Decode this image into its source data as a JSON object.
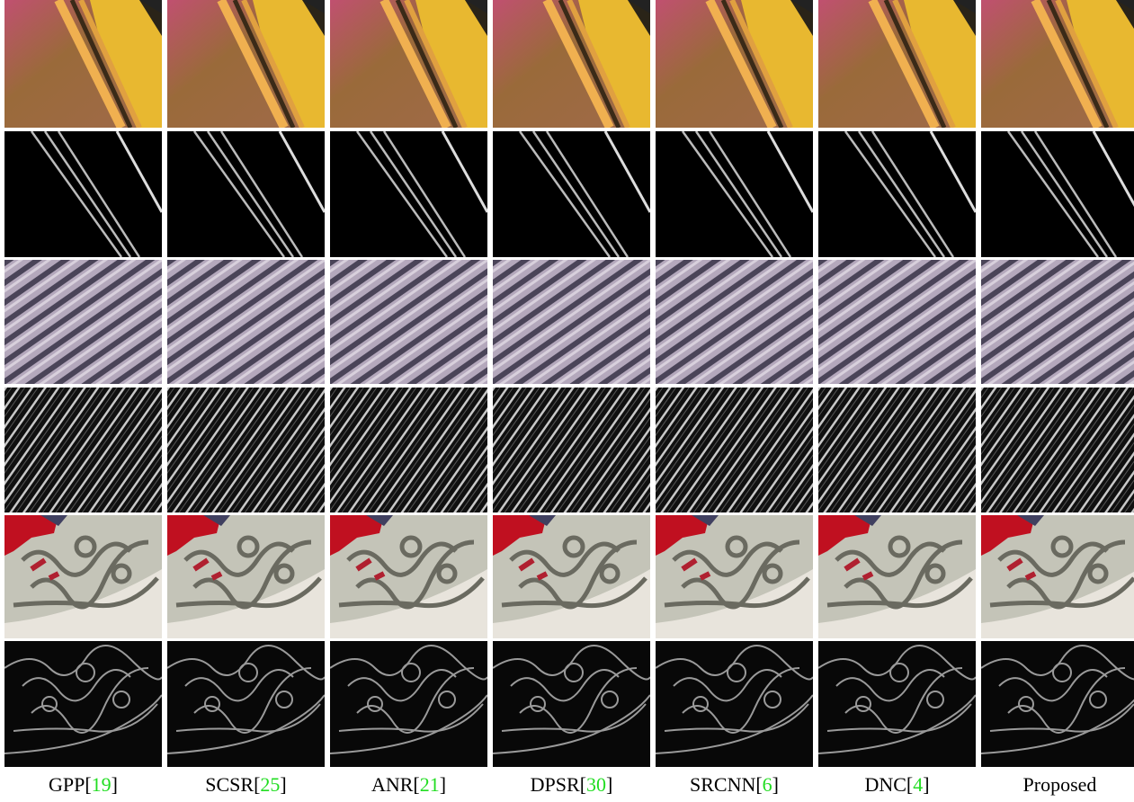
{
  "captions": [
    [
      "GPP",
      "[",
      "19",
      "]"
    ],
    [
      "SCSR",
      "[",
      "25",
      "]"
    ],
    [
      "ANR",
      "[",
      "21",
      "]"
    ],
    [
      "DPSR",
      "[",
      "30",
      "]"
    ],
    [
      "SRCNN",
      "[",
      "6",
      "]"
    ],
    [
      "DNC",
      "[",
      "4",
      "]"
    ],
    [
      "Proposed"
    ]
  ]
}
